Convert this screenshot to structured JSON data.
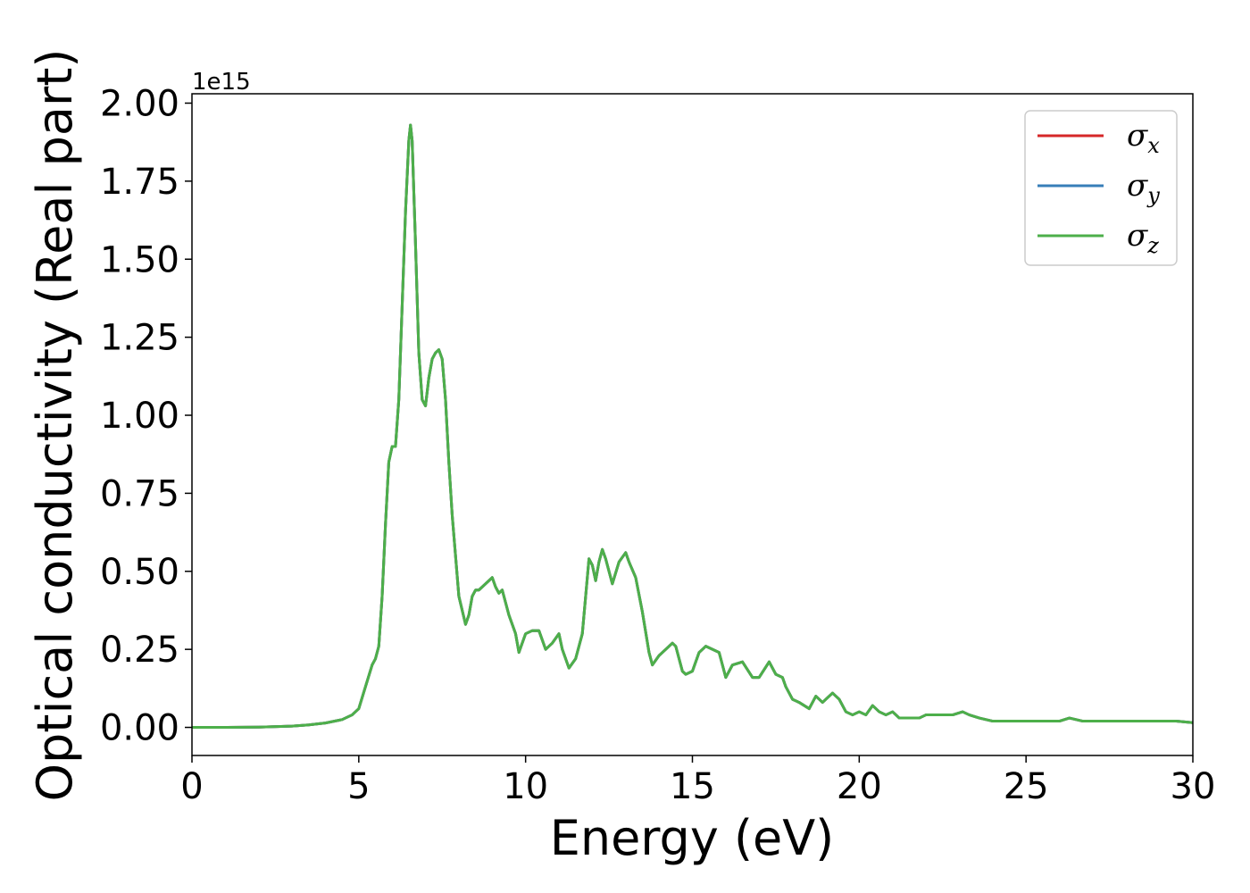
{
  "chart_data": {
    "type": "line",
    "title": "",
    "xlabel": "Energy (eV)",
    "ylabel": "Optical conductivity (Real part)",
    "y_offset_text": "1e15",
    "xlim": [
      0,
      30
    ],
    "ylim": [
      -0.09,
      2.03
    ],
    "x_ticks": [
      0,
      5,
      10,
      15,
      20,
      25,
      30
    ],
    "x_tick_labels": [
      "0",
      "5",
      "10",
      "15",
      "20",
      "25",
      "30"
    ],
    "y_ticks": [
      0.0,
      0.25,
      0.5,
      0.75,
      1.0,
      1.25,
      1.5,
      1.75,
      2.0
    ],
    "y_tick_labels": [
      "0.00",
      "0.25",
      "0.50",
      "0.75",
      "1.00",
      "1.25",
      "1.50",
      "1.75",
      "2.00"
    ],
    "grid": false,
    "legend_position": "top-right",
    "x": [
      0,
      1,
      2,
      3,
      3.5,
      4,
      4.5,
      4.8,
      5.0,
      5.2,
      5.4,
      5.5,
      5.6,
      5.7,
      5.8,
      5.9,
      6.0,
      6.1,
      6.2,
      6.3,
      6.4,
      6.5,
      6.55,
      6.6,
      6.7,
      6.8,
      6.9,
      7.0,
      7.1,
      7.2,
      7.3,
      7.4,
      7.5,
      7.6,
      7.7,
      7.8,
      8.0,
      8.2,
      8.3,
      8.4,
      8.5,
      8.6,
      8.8,
      9.0,
      9.1,
      9.2,
      9.3,
      9.4,
      9.5,
      9.7,
      9.8,
      10.0,
      10.2,
      10.4,
      10.6,
      10.8,
      11.0,
      11.1,
      11.3,
      11.5,
      11.7,
      11.8,
      11.9,
      12.0,
      12.1,
      12.2,
      12.3,
      12.4,
      12.5,
      12.6,
      12.8,
      13.0,
      13.1,
      13.3,
      13.5,
      13.7,
      13.8,
      14.0,
      14.2,
      14.4,
      14.5,
      14.7,
      14.8,
      15.0,
      15.2,
      15.4,
      15.6,
      15.8,
      16.0,
      16.2,
      16.5,
      16.8,
      17.0,
      17.3,
      17.5,
      17.7,
      17.8,
      18.0,
      18.2,
      18.5,
      18.7,
      18.9,
      19.2,
      19.4,
      19.6,
      19.8,
      20.0,
      20.2,
      20.4,
      20.6,
      20.8,
      21.0,
      21.2,
      21.5,
      21.8,
      22.0,
      22.3,
      22.6,
      22.8,
      23.1,
      23.3,
      23.6,
      24.0,
      24.5,
      25.0,
      25.5,
      26.0,
      26.3,
      26.7,
      27.0,
      27.4,
      27.7,
      28.0,
      28.5,
      29.0,
      29.5,
      30.0
    ],
    "series": [
      {
        "name": "σx",
        "color": "#d62728",
        "values": [
          0.0,
          0.0,
          0.001,
          0.004,
          0.008,
          0.014,
          0.025,
          0.04,
          0.06,
          0.13,
          0.2,
          0.22,
          0.26,
          0.42,
          0.65,
          0.85,
          0.9,
          0.9,
          1.05,
          1.35,
          1.65,
          1.88,
          1.93,
          1.88,
          1.55,
          1.2,
          1.05,
          1.03,
          1.12,
          1.18,
          1.2,
          1.21,
          1.18,
          1.05,
          0.85,
          0.68,
          0.42,
          0.33,
          0.36,
          0.42,
          0.44,
          0.44,
          0.46,
          0.48,
          0.45,
          0.43,
          0.44,
          0.4,
          0.36,
          0.3,
          0.24,
          0.3,
          0.31,
          0.31,
          0.25,
          0.27,
          0.3,
          0.25,
          0.19,
          0.22,
          0.3,
          0.42,
          0.54,
          0.52,
          0.47,
          0.53,
          0.57,
          0.54,
          0.5,
          0.46,
          0.53,
          0.56,
          0.53,
          0.48,
          0.37,
          0.24,
          0.2,
          0.23,
          0.25,
          0.27,
          0.26,
          0.18,
          0.17,
          0.18,
          0.24,
          0.26,
          0.25,
          0.24,
          0.16,
          0.2,
          0.21,
          0.16,
          0.16,
          0.21,
          0.17,
          0.16,
          0.13,
          0.09,
          0.08,
          0.06,
          0.1,
          0.08,
          0.11,
          0.09,
          0.05,
          0.04,
          0.05,
          0.04,
          0.07,
          0.05,
          0.04,
          0.05,
          0.03,
          0.03,
          0.03,
          0.04,
          0.04,
          0.04,
          0.04,
          0.05,
          0.04,
          0.03,
          0.02,
          0.02,
          0.02,
          0.02,
          0.02,
          0.03,
          0.02,
          0.02,
          0.02,
          0.02,
          0.02,
          0.02,
          0.02,
          0.02,
          0.015
        ]
      },
      {
        "name": "σy",
        "color": "#377eb8",
        "values": [
          0.0,
          0.0,
          0.001,
          0.004,
          0.008,
          0.014,
          0.025,
          0.04,
          0.06,
          0.13,
          0.2,
          0.22,
          0.26,
          0.42,
          0.65,
          0.85,
          0.9,
          0.9,
          1.05,
          1.35,
          1.65,
          1.88,
          1.93,
          1.88,
          1.55,
          1.2,
          1.05,
          1.03,
          1.12,
          1.18,
          1.2,
          1.21,
          1.18,
          1.05,
          0.85,
          0.68,
          0.42,
          0.33,
          0.36,
          0.42,
          0.44,
          0.44,
          0.46,
          0.48,
          0.45,
          0.43,
          0.44,
          0.4,
          0.36,
          0.3,
          0.24,
          0.3,
          0.31,
          0.31,
          0.25,
          0.27,
          0.3,
          0.25,
          0.19,
          0.22,
          0.3,
          0.42,
          0.54,
          0.52,
          0.47,
          0.53,
          0.57,
          0.54,
          0.5,
          0.46,
          0.53,
          0.56,
          0.53,
          0.48,
          0.37,
          0.24,
          0.2,
          0.23,
          0.25,
          0.27,
          0.26,
          0.18,
          0.17,
          0.18,
          0.24,
          0.26,
          0.25,
          0.24,
          0.16,
          0.2,
          0.21,
          0.16,
          0.16,
          0.21,
          0.17,
          0.16,
          0.13,
          0.09,
          0.08,
          0.06,
          0.1,
          0.08,
          0.11,
          0.09,
          0.05,
          0.04,
          0.05,
          0.04,
          0.07,
          0.05,
          0.04,
          0.05,
          0.03,
          0.03,
          0.03,
          0.04,
          0.04,
          0.04,
          0.04,
          0.05,
          0.04,
          0.03,
          0.02,
          0.02,
          0.02,
          0.02,
          0.02,
          0.03,
          0.02,
          0.02,
          0.02,
          0.02,
          0.02,
          0.02,
          0.02,
          0.02,
          0.015
        ]
      },
      {
        "name": "σz",
        "color": "#4daf4a",
        "values": [
          0.0,
          0.0,
          0.001,
          0.004,
          0.008,
          0.014,
          0.025,
          0.04,
          0.06,
          0.13,
          0.2,
          0.22,
          0.26,
          0.42,
          0.65,
          0.85,
          0.9,
          0.9,
          1.05,
          1.35,
          1.65,
          1.88,
          1.93,
          1.88,
          1.55,
          1.2,
          1.05,
          1.03,
          1.12,
          1.18,
          1.2,
          1.21,
          1.18,
          1.05,
          0.85,
          0.68,
          0.42,
          0.33,
          0.36,
          0.42,
          0.44,
          0.44,
          0.46,
          0.48,
          0.45,
          0.43,
          0.44,
          0.4,
          0.36,
          0.3,
          0.24,
          0.3,
          0.31,
          0.31,
          0.25,
          0.27,
          0.3,
          0.25,
          0.19,
          0.22,
          0.3,
          0.42,
          0.54,
          0.52,
          0.47,
          0.53,
          0.57,
          0.54,
          0.5,
          0.46,
          0.53,
          0.56,
          0.53,
          0.48,
          0.37,
          0.24,
          0.2,
          0.23,
          0.25,
          0.27,
          0.26,
          0.18,
          0.17,
          0.18,
          0.24,
          0.26,
          0.25,
          0.24,
          0.16,
          0.2,
          0.21,
          0.16,
          0.16,
          0.21,
          0.17,
          0.16,
          0.13,
          0.09,
          0.08,
          0.06,
          0.1,
          0.08,
          0.11,
          0.09,
          0.05,
          0.04,
          0.05,
          0.04,
          0.07,
          0.05,
          0.04,
          0.05,
          0.03,
          0.03,
          0.03,
          0.04,
          0.04,
          0.04,
          0.04,
          0.05,
          0.04,
          0.03,
          0.02,
          0.02,
          0.02,
          0.02,
          0.02,
          0.03,
          0.02,
          0.02,
          0.02,
          0.02,
          0.02,
          0.02,
          0.02,
          0.02,
          0.015
        ]
      }
    ],
    "legend": {
      "entries": [
        {
          "symbol": "σ",
          "subscript": "x",
          "series": 0
        },
        {
          "symbol": "σ",
          "subscript": "y",
          "series": 1
        },
        {
          "symbol": "σ",
          "subscript": "z",
          "series": 2
        }
      ]
    }
  }
}
